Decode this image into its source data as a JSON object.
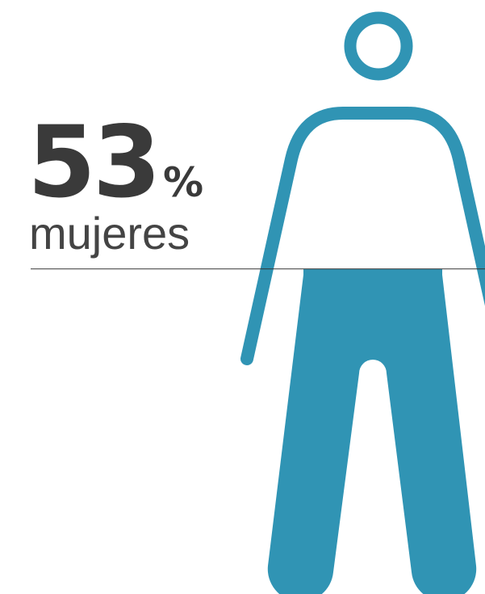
{
  "chart_data": {
    "type": "pictogram",
    "value": 53,
    "unit": "%",
    "label": "mujeres",
    "color": "#3094b4",
    "ylim": [
      0,
      100
    ]
  }
}
